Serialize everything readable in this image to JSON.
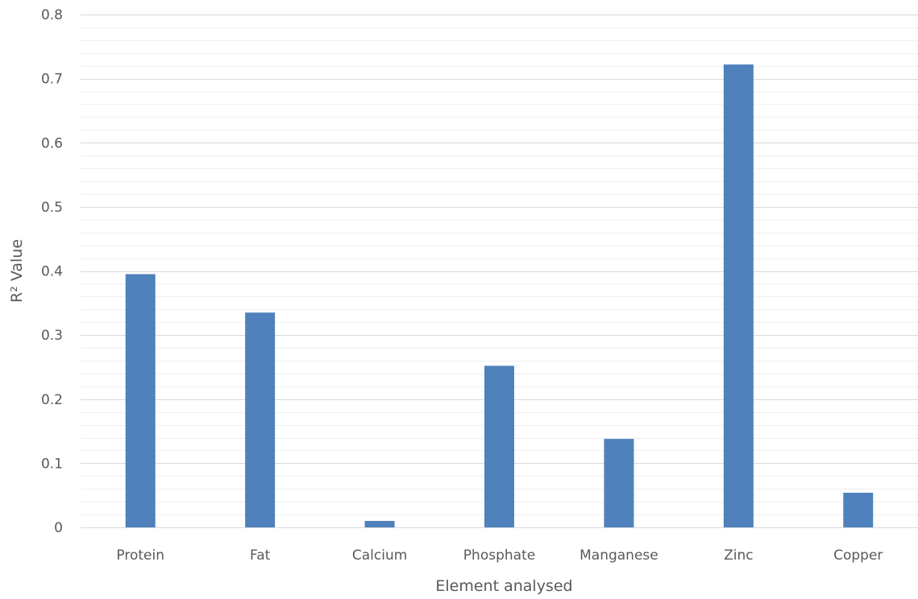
{
  "chart_data": {
    "type": "bar",
    "title": "",
    "xlabel": "Element analysed",
    "ylabel": "R² Value",
    "categories": [
      "Protein",
      "Fat",
      "Calcium",
      "Phosphate",
      "Manganese",
      "Zinc",
      "Copper"
    ],
    "series": [
      {
        "values": [
          0.395,
          0.335,
          0.01,
          0.252,
          0.138,
          0.722,
          0.054
        ]
      }
    ],
    "ylim": [
      0,
      0.8
    ],
    "yticks": [
      0,
      0.1,
      0.2,
      0.3,
      0.4,
      0.5,
      0.6,
      0.7,
      0.8
    ],
    "ytick_labels": [
      "0",
      "0.1",
      "0.2",
      "0.3",
      "0.4",
      "0.5",
      "0.6",
      "0.7",
      "0.8"
    ],
    "minor_grid_step": 0.02,
    "grid": true,
    "legend": "none",
    "colors": {
      "bar": "#4f81bd",
      "major_grid": "#d9d9d9",
      "minor_grid": "#efefef",
      "text": "#595959"
    }
  }
}
